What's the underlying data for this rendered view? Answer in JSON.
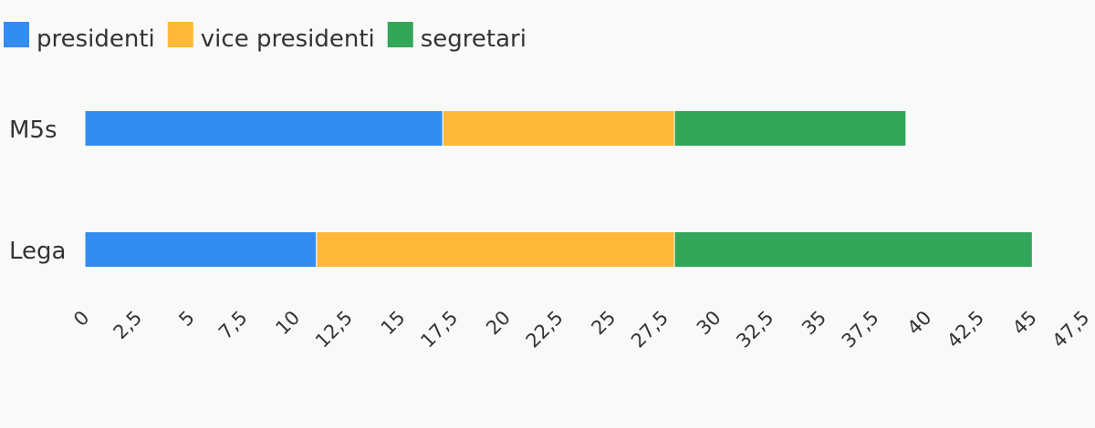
{
  "chart_data": {
    "type": "bar",
    "orientation": "horizontal",
    "stacked": true,
    "categories": [
      "M5s",
      "Lega"
    ],
    "series": [
      {
        "name": "presidenti",
        "color": "#338cf0",
        "values": [
          17,
          11
        ]
      },
      {
        "name": "vice presidenti",
        "color": "#ffb83a",
        "values": [
          11,
          17
        ]
      },
      {
        "name": "segretari",
        "color": "#33a65a",
        "values": [
          11,
          17
        ]
      }
    ],
    "xlim": [
      0,
      47.5
    ],
    "xticks": [
      "0",
      "2,5",
      "5",
      "7,5",
      "10",
      "12,5",
      "15",
      "17,5",
      "20",
      "22,5",
      "25",
      "27,5",
      "30",
      "32,5",
      "35",
      "37,5",
      "40",
      "42,5",
      "45",
      "47,5"
    ],
    "legend_position": "top-left",
    "grid": false
  }
}
